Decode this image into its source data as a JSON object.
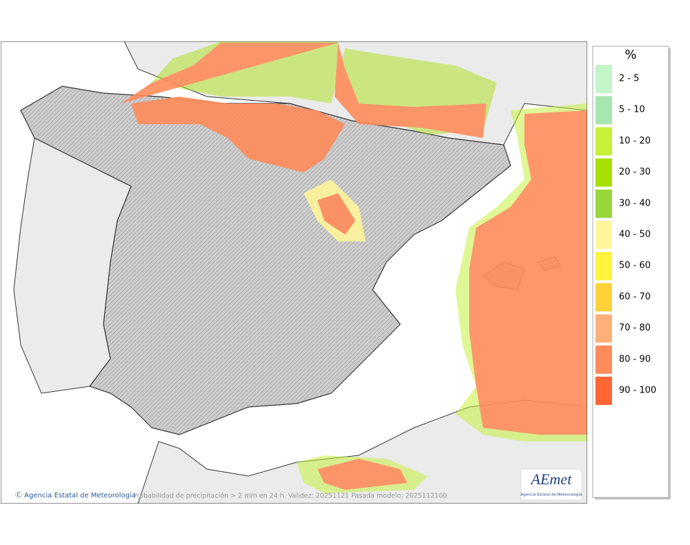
{
  "legend": {
    "title": "%",
    "items": [
      {
        "label": "2 - 5",
        "color": "#c2f5c8"
      },
      {
        "label": "5 - 10",
        "color": "#a8e6b0"
      },
      {
        "label": "10 - 20",
        "color": "#c6f03a"
      },
      {
        "label": "20 - 30",
        "color": "#a6e000"
      },
      {
        "label": "30 - 40",
        "color": "#98d63a"
      },
      {
        "label": "40 - 50",
        "color": "#fff59a"
      },
      {
        "label": "50 - 60",
        "color": "#fff23a"
      },
      {
        "label": "60 - 70",
        "color": "#ffd23a"
      },
      {
        "label": "70 - 80",
        "color": "#ffb07a"
      },
      {
        "label": "80 - 90",
        "color": "#ff8c5a"
      },
      {
        "label": "90 - 100",
        "color": "#ff6634"
      }
    ]
  },
  "footer": {
    "credit": "Ⓒ Agencia Estatal de Meteorología",
    "caption": "Probabilidad de precipitación > 2 mm en 24 h. Validez: 20251121 Pasada modelo: 2025112100"
  },
  "logo": {
    "name": "AEmet",
    "subtitle": "Agencia Estatal de Meteorología"
  }
}
